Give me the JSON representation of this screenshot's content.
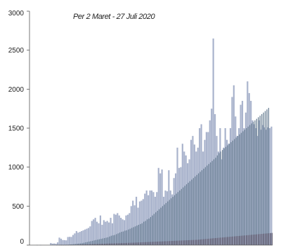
{
  "chart_data": {
    "type": "bar",
    "subtitle": "Per 2 Maret - 27 Juli 2020",
    "x_start": "2020-03-02",
    "x_end": "2020-07-27",
    "ylim": [
      0,
      3000
    ],
    "yticks": [
      0,
      500,
      1000,
      1500,
      2000,
      2500,
      3000
    ],
    "ytick_labels": [
      "0",
      "500",
      "1000",
      "1500",
      "2000",
      "2500",
      "3000"
    ],
    "grid": false,
    "legend": "none",
    "colors": {
      "cases": "#a9b3cc",
      "recovered": "#6a7f94",
      "deaths": "#5a5568"
    },
    "series": [
      {
        "values": [
          2,
          0,
          2,
          0,
          0,
          0,
          0,
          0,
          27,
          19,
          21,
          17,
          35,
          96,
          82,
          65,
          64,
          61,
          104,
          106,
          105,
          130,
          150,
          180,
          160,
          170,
          180,
          190,
          200,
          210,
          220,
          240,
          310,
          330,
          350,
          300,
          280,
          380,
          260,
          320,
          300,
          310,
          290,
          350,
          280,
          400,
          390,
          410,
          380,
          350,
          330,
          320,
          380,
          390,
          410,
          500,
          570,
          510,
          620,
          480,
          560,
          570,
          590,
          660,
          700,
          640,
          700,
          700,
          680,
          620,
          680,
          990,
          920,
          970,
          620,
          700,
          690,
          960,
          700,
          650,
          860,
          920,
          1250,
          990,
          1000,
          1300,
          1200,
          1150,
          1050,
          1100,
          1350,
          1400,
          1290,
          1200,
          1250,
          1500,
          1550,
          1200,
          1350,
          1450,
          1450,
          1600,
          1750,
          2650,
          1680,
          1400,
          1200,
          1500,
          1100,
          1250,
          1500,
          1350,
          1300,
          1500,
          1900,
          2050,
          1650,
          1400,
          1500,
          1800,
          1850,
          1500,
          1700,
          2100,
          1950,
          1850,
          1600,
          1550,
          1500,
          1400,
          1600,
          1480,
          1540,
          1510,
          1480,
          1510,
          1500,
          1520
        ]
      },
      {
        "values": [
          0,
          0,
          0,
          0,
          0,
          0,
          0,
          0,
          0,
          0,
          0,
          1,
          2,
          2,
          2,
          3,
          4,
          5,
          6,
          8,
          10,
          12,
          15,
          18,
          20,
          22,
          25,
          30,
          35,
          40,
          45,
          50,
          55,
          60,
          65,
          70,
          75,
          80,
          85,
          90,
          95,
          100,
          110,
          120,
          125,
          130,
          140,
          150,
          160,
          170,
          175,
          185,
          190,
          200,
          210,
          220,
          230,
          240,
          250,
          260,
          270,
          280,
          300,
          310,
          330,
          340,
          360,
          380,
          400,
          420,
          440,
          460,
          480,
          500,
          520,
          540,
          560,
          580,
          600,
          620,
          640,
          660,
          680,
          700,
          720,
          740,
          760,
          780,
          800,
          820,
          840,
          860,
          880,
          900,
          920,
          940,
          960,
          980,
          1000,
          1020,
          1040,
          1060,
          1080,
          1100,
          1120,
          1150,
          1180,
          1200,
          1220,
          1240,
          1260,
          1280,
          1300,
          1320,
          1340,
          1360,
          1380,
          1400,
          1420,
          1440,
          1460,
          1480,
          1500,
          1520,
          1540,
          1560,
          1580,
          1600,
          1620,
          1640,
          1660,
          1680,
          1700,
          1720,
          1740,
          1760
        ]
      },
      {
        "values": [
          0,
          0,
          0,
          0,
          0,
          0,
          0,
          0,
          0,
          0,
          0,
          0,
          0,
          1,
          1,
          1,
          1,
          2,
          2,
          3,
          3,
          4,
          5,
          6,
          7,
          8,
          9,
          10,
          10,
          11,
          12,
          12,
          13,
          14,
          14,
          15,
          16,
          17,
          18,
          18,
          19,
          20,
          21,
          22,
          22,
          23,
          24,
          24,
          25,
          26,
          26,
          27,
          28,
          29,
          30,
          30,
          31,
          32,
          33,
          34,
          35,
          36,
          37,
          38,
          39,
          40,
          41,
          42,
          43,
          44,
          45,
          46,
          47,
          48,
          49,
          50,
          51,
          52,
          53,
          54,
          55,
          56,
          57,
          58,
          59,
          60,
          61,
          62,
          63,
          64,
          65,
          66,
          67,
          68,
          70,
          72,
          74,
          76,
          78,
          80,
          82,
          84,
          86,
          88,
          90,
          92,
          94,
          96,
          98,
          100,
          102,
          104,
          106,
          108,
          110,
          112,
          114,
          116,
          118,
          120,
          122,
          124,
          126,
          128,
          130,
          132,
          134,
          136,
          138,
          140,
          142,
          144,
          146,
          148,
          150,
          152,
          154,
          156
        ]
      }
    ]
  }
}
